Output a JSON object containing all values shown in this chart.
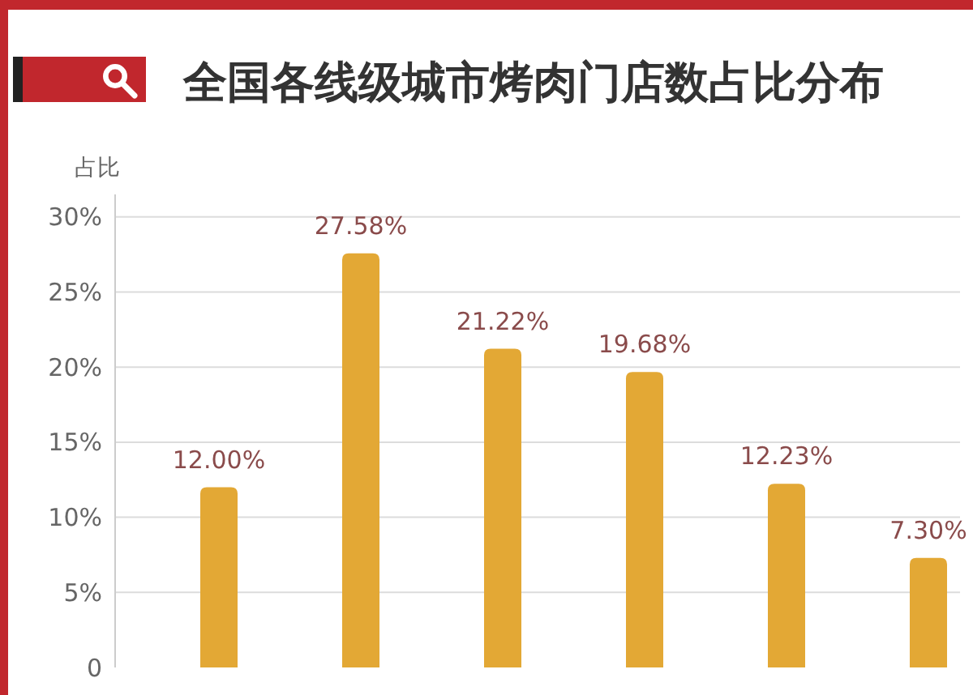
{
  "chart_data": {
    "type": "bar",
    "title": "全国各线级城市烤肉门店数占比分布",
    "ylabel": "占比",
    "categories": [
      null,
      null,
      null,
      null,
      null,
      null
    ],
    "values": [
      12.0,
      27.58,
      21.22,
      19.68,
      12.23,
      7.3
    ],
    "value_labels": [
      "12.00%",
      "27.58%",
      "21.22%",
      "19.68%",
      "12.23%",
      "7.30%"
    ],
    "color": "#e3a835",
    "ylim": [
      0,
      31.5
    ],
    "yticks": [
      {
        "value": 0,
        "label": "0"
      },
      {
        "value": 5,
        "label": "5%"
      },
      {
        "value": 10,
        "label": "10%"
      },
      {
        "value": 15,
        "label": "15%"
      },
      {
        "value": 20,
        "label": "20%"
      },
      {
        "value": 25,
        "label": "25%"
      },
      {
        "value": 30,
        "label": "30%"
      }
    ],
    "grid": "y"
  }
}
